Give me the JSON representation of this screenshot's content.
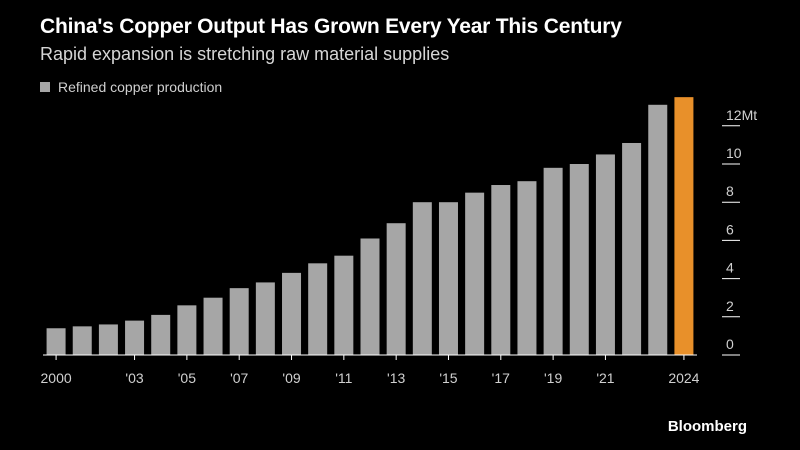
{
  "header": {
    "title": "China's Copper Output Has Grown Every Year This Century",
    "subtitle": "Rapid expansion is stretching raw material supplies"
  },
  "legend": {
    "label": "Refined copper production"
  },
  "colors": {
    "bar": "#a6a6a6",
    "highlight": "#e8902a",
    "axis": "#ffffff",
    "tick": "#ffffff"
  },
  "brand": "Bloomberg",
  "chart_data": {
    "type": "bar",
    "title": "China's Copper Output Has Grown Every Year This Century",
    "subtitle": "Rapid expansion is stretching raw material supplies",
    "xlabel": "",
    "ylabel": "",
    "ylim": [
      0,
      13
    ],
    "y_unit_suffix": "Mt",
    "yticks": [
      0,
      2,
      4,
      6,
      8,
      10,
      12
    ],
    "ytick_labels": [
      "0",
      "2",
      "4",
      "6",
      "8",
      "10",
      "12Mt"
    ],
    "categories": [
      "2000",
      "2001",
      "2002",
      "2003",
      "2004",
      "2005",
      "2006",
      "2007",
      "2008",
      "2009",
      "2010",
      "2011",
      "2012",
      "2013",
      "2014",
      "2015",
      "2016",
      "2017",
      "2018",
      "2019",
      "2020",
      "2021",
      "2022",
      "2023",
      "2024"
    ],
    "xtick_labels": {
      "2000": "2000",
      "2003": "'03",
      "2005": "'05",
      "2007": "'07",
      "2009": "'09",
      "2011": "'11",
      "2013": "'13",
      "2015": "'15",
      "2017": "'17",
      "2019": "'19",
      "2021": "'21",
      "2024": "2024"
    },
    "highlight_category": "2024",
    "series": [
      {
        "name": "Refined copper production",
        "values": [
          1.4,
          1.5,
          1.6,
          1.8,
          2.1,
          2.6,
          3.0,
          3.5,
          3.8,
          4.3,
          4.8,
          5.2,
          6.1,
          6.9,
          8.0,
          8.0,
          8.5,
          8.9,
          9.1,
          9.8,
          10.0,
          10.5,
          11.1,
          13.1,
          13.5
        ]
      }
    ],
    "legend_position": "top-left",
    "grid": false
  }
}
